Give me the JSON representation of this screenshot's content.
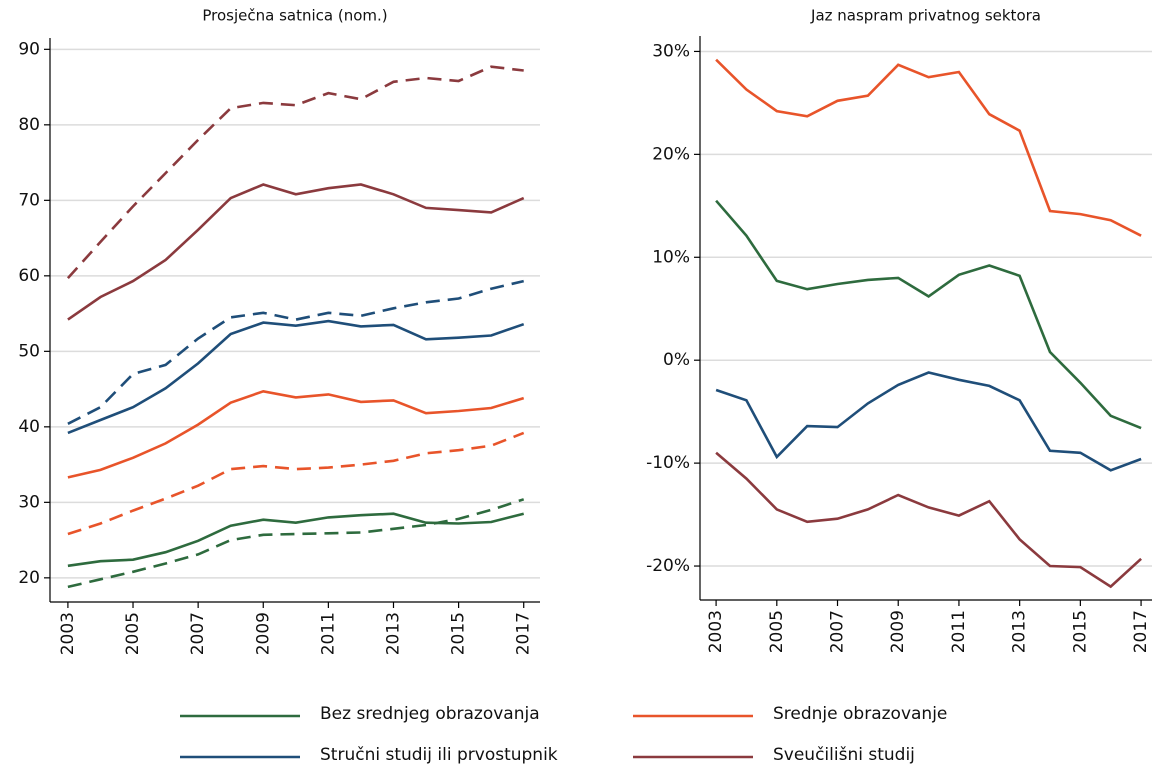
{
  "chart_data": [
    {
      "type": "line",
      "title": "Prosječna satnica (nom.)",
      "x": [
        2003,
        2004,
        2005,
        2006,
        2007,
        2008,
        2009,
        2010,
        2011,
        2012,
        2013,
        2014,
        2015,
        2016,
        2017
      ],
      "xlim": [
        2002.45,
        2017.5
      ],
      "xticks": [
        2003,
        2005,
        2007,
        2009,
        2011,
        2013,
        2015,
        2017
      ],
      "ylim": [
        16.8,
        91.5
      ],
      "yticks": [
        20,
        30,
        40,
        50,
        60,
        70,
        80,
        90
      ],
      "grid": true,
      "series": [
        {
          "name": "Bez srednjeg obrazovanja",
          "color": "#2e6b3e",
          "linestyle": "solid",
          "values": [
            21.6,
            22.2,
            22.4,
            23.4,
            24.9,
            26.9,
            27.7,
            27.3,
            28.0,
            28.3,
            28.5,
            27.3,
            27.2,
            27.4,
            28.5
          ]
        },
        {
          "color": "#2e6b3e",
          "linestyle": "dashed",
          "values": [
            18.8,
            19.8,
            20.8,
            21.9,
            23.1,
            25.0,
            25.7,
            25.8,
            25.9,
            26.0,
            26.5,
            27.0,
            27.8,
            29.0,
            30.4
          ]
        },
        {
          "name": "Srednje obrazovanje",
          "color": "#e8542a",
          "linestyle": "solid",
          "values": [
            33.3,
            34.3,
            35.9,
            37.8,
            40.3,
            43.2,
            44.7,
            43.9,
            44.3,
            43.3,
            43.5,
            41.8,
            42.1,
            42.5,
            43.8
          ]
        },
        {
          "color": "#e8542a",
          "linestyle": "dashed",
          "values": [
            25.8,
            27.2,
            28.9,
            30.5,
            32.2,
            34.4,
            34.8,
            34.4,
            34.6,
            35.0,
            35.5,
            36.5,
            36.9,
            37.5,
            39.2
          ]
        },
        {
          "name": "Stručni studij ili prvostupnik",
          "color": "#1f4e79",
          "linestyle": "solid",
          "values": [
            39.2,
            40.9,
            42.6,
            45.1,
            48.4,
            52.3,
            53.8,
            53.4,
            54.0,
            53.3,
            53.5,
            51.6,
            51.8,
            52.1,
            53.6
          ]
        },
        {
          "color": "#1f4e79",
          "linestyle": "dashed",
          "values": [
            40.4,
            42.6,
            47.0,
            48.2,
            51.7,
            54.5,
            55.1,
            54.2,
            55.1,
            54.7,
            55.7,
            56.5,
            57.0,
            58.3,
            59.3
          ]
        },
        {
          "name": "Sveučilišni studij",
          "color": "#8b3a3e",
          "linestyle": "solid",
          "values": [
            54.2,
            57.2,
            59.3,
            62.1,
            66.1,
            70.3,
            72.1,
            70.8,
            71.6,
            72.1,
            70.8,
            69.0,
            68.7,
            68.4,
            70.3
          ]
        },
        {
          "color": "#8b3a3e",
          "linestyle": "dashed",
          "values": [
            59.7,
            64.5,
            69.2,
            73.6,
            78.0,
            82.2,
            82.9,
            82.6,
            84.2,
            83.4,
            85.7,
            86.2,
            85.8,
            87.7,
            87.2
          ]
        }
      ]
    },
    {
      "type": "line",
      "title": "Jaz naspram privatnog sektora",
      "x": [
        2003,
        2004,
        2005,
        2006,
        2007,
        2008,
        2009,
        2010,
        2011,
        2012,
        2013,
        2014,
        2015,
        2016,
        2017
      ],
      "xlim": [
        2002.47,
        2017.36
      ],
      "xticks": [
        2003,
        2005,
        2007,
        2009,
        2011,
        2013,
        2015,
        2017
      ],
      "ylim": [
        -23.3,
        31.5
      ],
      "yticks": [
        {
          "value": -20,
          "label": "-20%"
        },
        {
          "value": -10,
          "label": "-10%"
        },
        {
          "value": 0,
          "label": "0%"
        },
        {
          "value": 10,
          "label": "10%"
        },
        {
          "value": 20,
          "label": "20%"
        },
        {
          "value": 30,
          "label": "30%"
        }
      ],
      "grid": true,
      "series": [
        {
          "color": "#2e6b3e",
          "linestyle": "solid",
          "values": [
            15.5,
            12.1,
            7.7,
            6.9,
            7.4,
            7.8,
            8.0,
            6.2,
            8.3,
            9.2,
            8.2,
            0.8,
            -2.2,
            -5.4,
            -6.6
          ]
        },
        {
          "color": "#e8542a",
          "linestyle": "solid",
          "values": [
            29.2,
            26.3,
            24.2,
            23.7,
            25.2,
            25.7,
            28.7,
            27.5,
            28.0,
            23.9,
            22.3,
            14.5,
            14.2,
            13.6,
            12.1
          ]
        },
        {
          "color": "#1f4e79",
          "linestyle": "solid",
          "values": [
            -2.9,
            -3.9,
            -9.4,
            -6.4,
            -6.5,
            -4.2,
            -2.4,
            -1.2,
            -1.9,
            -2.5,
            -3.9,
            -8.8,
            -9.0,
            -10.7,
            -9.6
          ]
        },
        {
          "color": "#8b3a3e",
          "linestyle": "solid",
          "values": [
            -9.0,
            -11.5,
            -14.5,
            -15.7,
            -15.4,
            -14.5,
            -13.1,
            -14.3,
            -15.1,
            -13.7,
            -17.4,
            -20.0,
            -20.1,
            -22.0,
            -19.3
          ]
        }
      ]
    }
  ]
}
